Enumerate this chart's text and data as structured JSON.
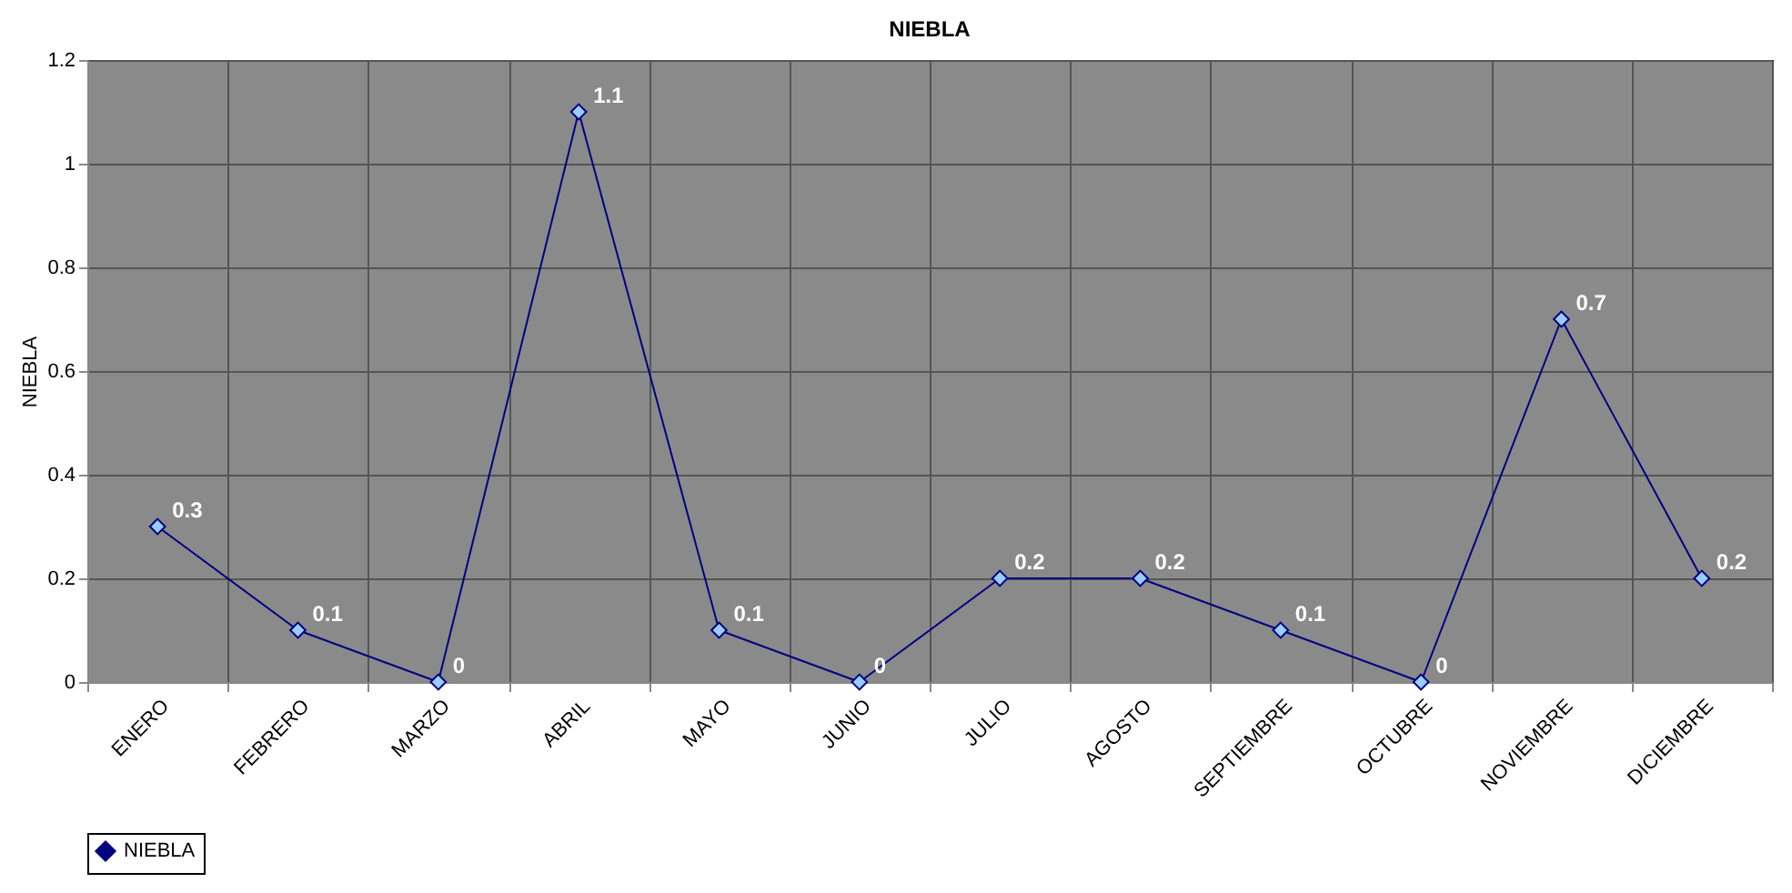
{
  "chart_data": {
    "type": "line",
    "title": "NIEBLA",
    "ylabel": "NIEBLA",
    "categories": [
      "ENERO",
      "FEBRERO",
      "MARZO",
      "ABRIL",
      "MAYO",
      "JUNIO",
      "JULIO",
      "AGOSTO",
      "SEPTIEMBRE",
      "OCTUBRE",
      "NOVIEMBRE",
      "DICIEMBRE"
    ],
    "series": [
      {
        "name": "NIEBLA",
        "color": "#000080",
        "values": [
          0.3,
          0.1,
          0,
          1.1,
          0.1,
          0,
          0.2,
          0.2,
          0.1,
          0,
          0.7,
          0.2
        ]
      }
    ],
    "ylim": [
      0,
      1.2
    ],
    "yticks": [
      0,
      0.2,
      0.4,
      0.6,
      0.8,
      1,
      1.2
    ],
    "grid": true,
    "legend": "bottom",
    "marker": "diamond",
    "line_style": "solid",
    "data_labels": true
  }
}
